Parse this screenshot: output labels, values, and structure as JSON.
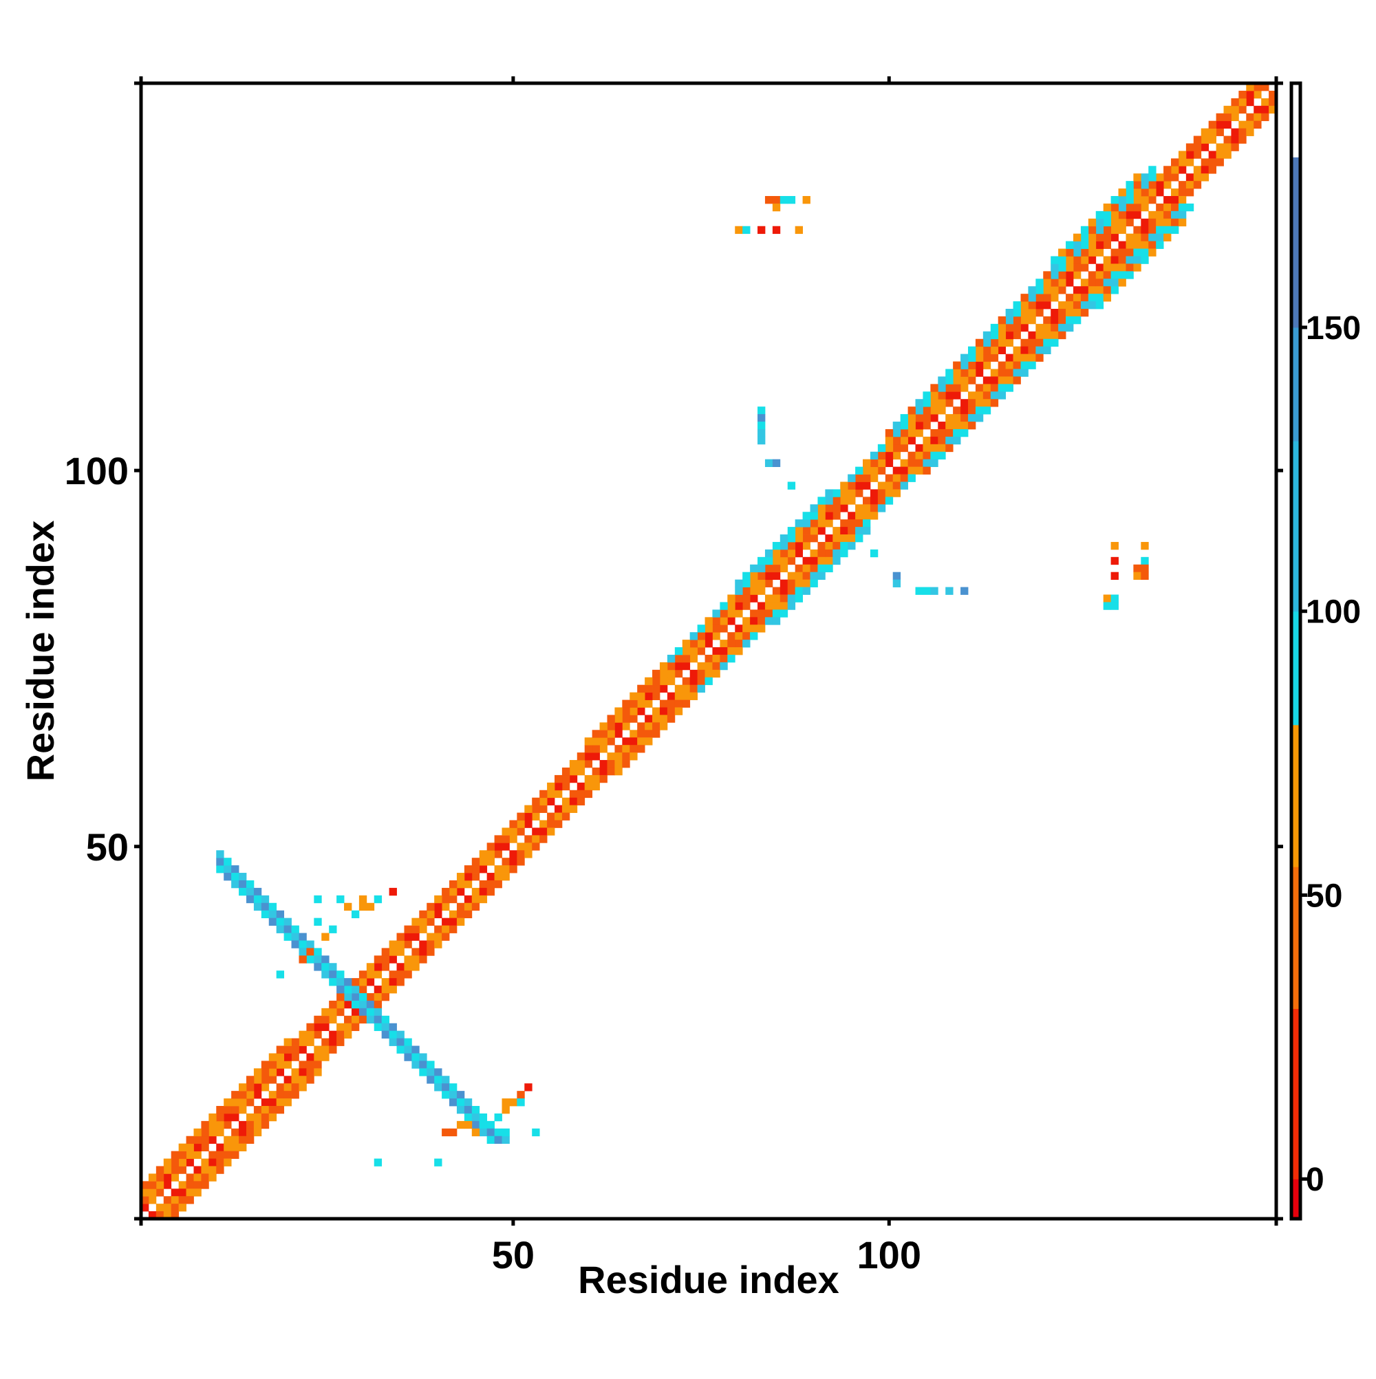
{
  "chart_data": {
    "type": "heatmap",
    "xlabel": "Residue index",
    "ylabel": "Residue index",
    "xlim": [
      0.5,
      151.5
    ],
    "ylim": [
      0.5,
      151.5
    ],
    "x_ticks": [
      {
        "value": 50,
        "label": "50"
      },
      {
        "value": 100,
        "label": "100"
      }
    ],
    "y_ticks": [
      {
        "value": 50,
        "label": "50"
      },
      {
        "value": 100,
        "label": "100"
      }
    ],
    "colorbar": {
      "ticks": [
        {
          "value": 0,
          "label": "0"
        },
        {
          "value": 50,
          "label": "50"
        },
        {
          "value": 100,
          "label": "100"
        },
        {
          "value": 150,
          "label": "150"
        }
      ],
      "range": [
        -7,
        193
      ],
      "bands": [
        {
          "from": -7,
          "to": 0,
          "color": "#e8000c"
        },
        {
          "from": 0,
          "to": 30,
          "color": "#f42c06"
        },
        {
          "from": 30,
          "to": 55,
          "color": "#f56e0a"
        },
        {
          "from": 55,
          "to": 80,
          "color": "#f79805"
        },
        {
          "from": 80,
          "to": 100,
          "color": "#18d8e6"
        },
        {
          "from": 100,
          "to": 130,
          "color": "#2cb7de"
        },
        {
          "from": 130,
          "to": 150,
          "color": "#3a9bd2"
        },
        {
          "from": 150,
          "to": 180,
          "color": "#4d78b8"
        },
        {
          "from": 180,
          "to": 193,
          "color": "#ffffff"
        }
      ]
    },
    "palette": {
      "red": "#ee1a08",
      "orange_red": "#f4590b",
      "orange": "#f9960a",
      "cyan": "#17dfe8",
      "light_blue": "#33c6e3",
      "steel_blue": "#4a92d0"
    },
    "cells": {
      "diagonal_bands": [
        {
          "from": 1,
          "to": 151,
          "offset": 1,
          "pattern": [
            "orange_red",
            "red",
            "orange"
          ]
        },
        {
          "from": 1,
          "to": 151,
          "offset": 2,
          "pattern": [
            "orange",
            "orange_red",
            "red",
            "orange"
          ]
        },
        {
          "from": 1,
          "to": 151,
          "offset": 3,
          "pattern": [
            "orange_red",
            "orange",
            "orange_red"
          ]
        },
        {
          "from": 1,
          "to": 20,
          "offset": 4,
          "pattern": [
            "orange",
            "orange_red"
          ]
        },
        {
          "from": 60,
          "to": 70,
          "offset": 4,
          "pattern": [
            "orange",
            "orange_red"
          ]
        },
        {
          "from": 70,
          "to": 135,
          "offset": 4,
          "pattern": [
            "cyan",
            "orange",
            "light_blue"
          ]
        },
        {
          "from": 80,
          "to": 92,
          "offset": 5,
          "pattern": [
            "cyan",
            "light_blue"
          ]
        },
        {
          "from": 100,
          "to": 135,
          "offset": 5,
          "pattern": [
            "cyan",
            "orange_red",
            "light_blue"
          ]
        },
        {
          "from": 122,
          "to": 133,
          "offset": 6,
          "pattern": [
            "cyan",
            "orange"
          ]
        }
      ],
      "antidiagonal_bands": [
        {
          "i_from": 11,
          "i_to": 47,
          "sum": 58,
          "width": 3,
          "colors": [
            "steel_blue",
            "light_blue",
            "cyan"
          ]
        }
      ],
      "isolated": [
        {
          "x": 24,
          "y": 40,
          "c": "cyan"
        },
        {
          "x": 24,
          "y": 43,
          "c": "cyan"
        },
        {
          "x": 25,
          "y": 38,
          "c": "orange"
        },
        {
          "x": 26,
          "y": 39,
          "c": "cyan"
        },
        {
          "x": 27,
          "y": 43,
          "c": "cyan"
        },
        {
          "x": 28,
          "y": 42,
          "c": "orange"
        },
        {
          "x": 29,
          "y": 41,
          "c": "cyan"
        },
        {
          "x": 30,
          "y": 42,
          "c": "orange"
        },
        {
          "x": 30,
          "y": 43,
          "c": "orange"
        },
        {
          "x": 31,
          "y": 42,
          "c": "orange"
        },
        {
          "x": 32,
          "y": 43,
          "c": "cyan"
        },
        {
          "x": 34,
          "y": 44,
          "c": "red"
        },
        {
          "x": 22,
          "y": 35,
          "c": "orange_red"
        },
        {
          "x": 23,
          "y": 36,
          "c": "orange_red"
        },
        {
          "x": 19,
          "y": 33,
          "c": "cyan"
        },
        {
          "x": 40,
          "y": 8,
          "c": "cyan"
        },
        {
          "x": 41,
          "y": 12,
          "c": "orange_red"
        },
        {
          "x": 42,
          "y": 12,
          "c": "orange_red"
        },
        {
          "x": 43,
          "y": 13,
          "c": "orange"
        },
        {
          "x": 44,
          "y": 13,
          "c": "orange"
        },
        {
          "x": 45,
          "y": 12,
          "c": "orange"
        },
        {
          "x": 46,
          "y": 14,
          "c": "cyan"
        },
        {
          "x": 47,
          "y": 13,
          "c": "cyan"
        },
        {
          "x": 48,
          "y": 12,
          "c": "cyan"
        },
        {
          "x": 48,
          "y": 14,
          "c": "cyan"
        },
        {
          "x": 49,
          "y": 15,
          "c": "orange"
        },
        {
          "x": 49,
          "y": 16,
          "c": "orange"
        },
        {
          "x": 50,
          "y": 16,
          "c": "orange"
        },
        {
          "x": 51,
          "y": 17,
          "c": "orange_red"
        },
        {
          "x": 51,
          "y": 16,
          "c": "cyan"
        },
        {
          "x": 52,
          "y": 18,
          "c": "red"
        },
        {
          "x": 49,
          "y": 12,
          "c": "cyan"
        },
        {
          "x": 53,
          "y": 12,
          "c": "cyan"
        },
        {
          "x": 80,
          "y": 132,
          "c": "orange"
        },
        {
          "x": 81,
          "y": 132,
          "c": "cyan"
        },
        {
          "x": 83,
          "y": 132,
          "c": "red"
        },
        {
          "x": 85,
          "y": 132,
          "c": "red"
        },
        {
          "x": 88,
          "y": 132,
          "c": "orange"
        },
        {
          "x": 84,
          "y": 136,
          "c": "orange_red"
        },
        {
          "x": 85,
          "y": 136,
          "c": "orange_red"
        },
        {
          "x": 85,
          "y": 135,
          "c": "orange"
        },
        {
          "x": 86,
          "y": 136,
          "c": "cyan"
        },
        {
          "x": 87,
          "y": 136,
          "c": "cyan"
        },
        {
          "x": 89,
          "y": 136,
          "c": "orange"
        },
        {
          "x": 83,
          "y": 108,
          "c": "cyan"
        },
        {
          "x": 83,
          "y": 107,
          "c": "steel_blue"
        },
        {
          "x": 83,
          "y": 106,
          "c": "cyan"
        },
        {
          "x": 83,
          "y": 105,
          "c": "light_blue"
        },
        {
          "x": 83,
          "y": 104,
          "c": "light_blue"
        },
        {
          "x": 84,
          "y": 101,
          "c": "light_blue"
        },
        {
          "x": 85,
          "y": 101,
          "c": "steel_blue"
        },
        {
          "x": 87,
          "y": 98,
          "c": "cyan"
        },
        {
          "x": 98,
          "y": 89,
          "c": "cyan"
        },
        {
          "x": 101,
          "y": 86,
          "c": "steel_blue"
        },
        {
          "x": 101,
          "y": 85,
          "c": "light_blue"
        },
        {
          "x": 104,
          "y": 84,
          "c": "cyan"
        },
        {
          "x": 105,
          "y": 84,
          "c": "cyan"
        },
        {
          "x": 106,
          "y": 84,
          "c": "light_blue"
        },
        {
          "x": 108,
          "y": 84,
          "c": "light_blue"
        },
        {
          "x": 110,
          "y": 84,
          "c": "steel_blue"
        },
        {
          "x": 130,
          "y": 90,
          "c": "orange"
        },
        {
          "x": 134,
          "y": 90,
          "c": "orange"
        },
        {
          "x": 130,
          "y": 88,
          "c": "red"
        },
        {
          "x": 134,
          "y": 88,
          "c": "cyan"
        },
        {
          "x": 130,
          "y": 86,
          "c": "red"
        },
        {
          "x": 133,
          "y": 87,
          "c": "orange_red"
        },
        {
          "x": 134,
          "y": 87,
          "c": "orange_red"
        },
        {
          "x": 133,
          "y": 86,
          "c": "orange"
        },
        {
          "x": 134,
          "y": 86,
          "c": "orange_red"
        },
        {
          "x": 129,
          "y": 83,
          "c": "orange"
        },
        {
          "x": 130,
          "y": 83,
          "c": "cyan"
        },
        {
          "x": 129,
          "y": 82,
          "c": "cyan"
        },
        {
          "x": 130,
          "y": 82,
          "c": "cyan"
        },
        {
          "x": 32,
          "y": 8,
          "c": "cyan"
        }
      ]
    }
  }
}
